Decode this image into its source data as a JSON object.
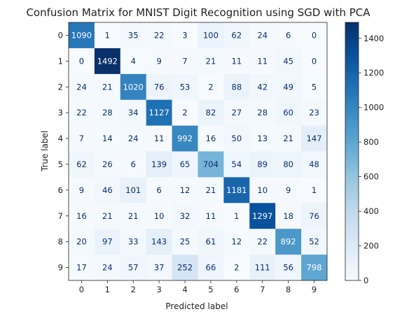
{
  "chart_data": {
    "type": "heatmap",
    "title": "Confusion Matrix for MNIST Digit Recognition using SGD with PCA",
    "xlabel": "Predicted label",
    "ylabel": "True label",
    "x_categories": [
      "0",
      "1",
      "2",
      "3",
      "4",
      "5",
      "6",
      "7",
      "8",
      "9"
    ],
    "y_categories": [
      "0",
      "1",
      "2",
      "3",
      "4",
      "5",
      "6",
      "7",
      "8",
      "9"
    ],
    "values": [
      [
        1090,
        1,
        35,
        22,
        3,
        100,
        62,
        24,
        6,
        0
      ],
      [
        0,
        1492,
        4,
        9,
        7,
        21,
        11,
        11,
        45,
        0
      ],
      [
        24,
        21,
        1020,
        76,
        53,
        2,
        88,
        42,
        49,
        5
      ],
      [
        22,
        28,
        34,
        1127,
        2,
        82,
        27,
        28,
        60,
        23
      ],
      [
        7,
        14,
        24,
        11,
        992,
        16,
        50,
        13,
        21,
        147
      ],
      [
        62,
        26,
        6,
        139,
        65,
        704,
        54,
        89,
        80,
        48
      ],
      [
        9,
        46,
        101,
        6,
        12,
        21,
        1181,
        10,
        9,
        1
      ],
      [
        16,
        21,
        21,
        10,
        32,
        11,
        1,
        1297,
        18,
        76
      ],
      [
        20,
        97,
        33,
        143,
        25,
        61,
        12,
        22,
        892,
        52
      ],
      [
        17,
        24,
        57,
        37,
        252,
        66,
        2,
        111,
        56,
        798
      ]
    ],
    "colormap": "Blues",
    "colorbar": {
      "range": [
        0,
        1492
      ],
      "ticks": [
        0,
        200,
        400,
        600,
        800,
        1000,
        1200,
        1400
      ]
    },
    "text_color_light": "#ffffff",
    "text_color_dark": "#08306b"
  }
}
